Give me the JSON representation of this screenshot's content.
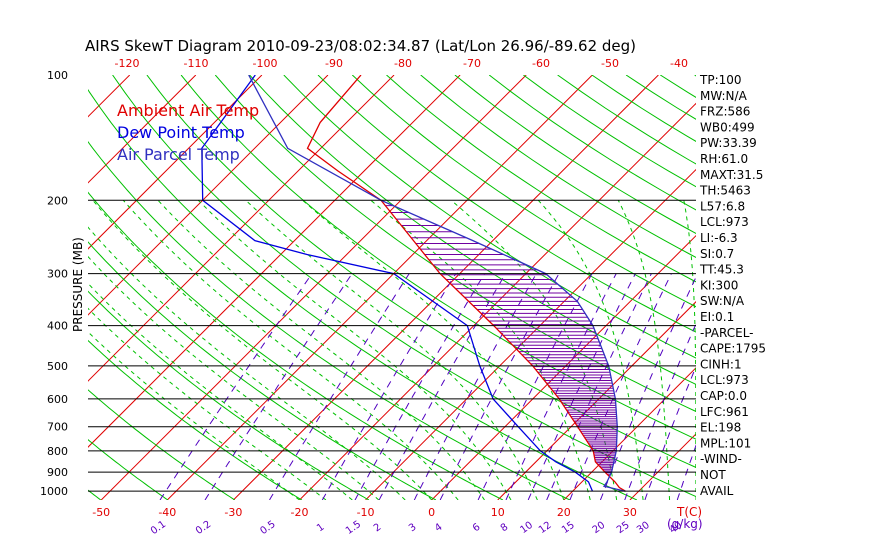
{
  "chart_data": {
    "type": "line",
    "title": "AIRS SkewT Diagram 2010-09-23/08:02:34.87 (Lat/Lon 26.96/-89.62 deg)",
    "ylabel": "PRESSURE (MB)",
    "xlabel": "T(C)",
    "mixing_ratio_label": "(g/kg)",
    "y_scale": "log",
    "ylim": [
      1050,
      100
    ],
    "xlim": [
      -52,
      40
    ],
    "pressure_ticks": [
      100,
      200,
      300,
      400,
      500,
      600,
      700,
      800,
      900,
      1000
    ],
    "bottom_temp_ticks": [
      -50,
      -40,
      -30,
      -20,
      -10,
      0,
      10,
      20,
      30
    ],
    "top_temp_ticks": [
      -120,
      -110,
      -100,
      -90,
      -80,
      -70,
      -60,
      -50,
      -40
    ],
    "mixing_ratio_ticks": [
      "0.1",
      "0.2",
      "0.5",
      "1",
      "1.5",
      "2",
      "3",
      "4",
      "6",
      "8",
      "10",
      "12",
      "15",
      "20",
      "25",
      "30",
      "40"
    ],
    "legend": [
      {
        "label": "Ambient Air Temp",
        "color": "#e00000"
      },
      {
        "label": "Dew Point Temp",
        "color": "#0000e0"
      },
      {
        "label": "Air Parcel Temp",
        "color": "#3030c0"
      }
    ],
    "series": [
      {
        "name": "Ambient Air Temp",
        "color": "#e00000",
        "points": [
          [
            1000,
            28
          ],
          [
            980,
            26.5
          ],
          [
            950,
            25
          ],
          [
            900,
            22
          ],
          [
            850,
            19
          ],
          [
            800,
            17
          ],
          [
            700,
            11
          ],
          [
            600,
            4
          ],
          [
            500,
            -5
          ],
          [
            400,
            -17
          ],
          [
            300,
            -33
          ],
          [
            250,
            -42
          ],
          [
            200,
            -53
          ],
          [
            170,
            -64
          ],
          [
            150,
            -72
          ],
          [
            130,
            -74
          ],
          [
            100,
            -75
          ]
        ]
      },
      {
        "name": "Dew Point Temp",
        "color": "#0000e0",
        "points": [
          [
            1000,
            23
          ],
          [
            950,
            21
          ],
          [
            900,
            17.5
          ],
          [
            850,
            13
          ],
          [
            800,
            9
          ],
          [
            700,
            2
          ],
          [
            600,
            -6
          ],
          [
            500,
            -13
          ],
          [
            400,
            -21
          ],
          [
            300,
            -40
          ],
          [
            270,
            -56
          ],
          [
            250,
            -66
          ],
          [
            200,
            -80
          ],
          [
            150,
            -88
          ],
          [
            100,
            -91
          ]
        ]
      },
      {
        "name": "Air Parcel Temp",
        "color": "#3030c0",
        "points": [
          [
            1000,
            28
          ],
          [
            973,
            24
          ],
          [
            950,
            23.8
          ],
          [
            900,
            23
          ],
          [
            850,
            21.8
          ],
          [
            800,
            20.5
          ],
          [
            700,
            17
          ],
          [
            600,
            12.5
          ],
          [
            500,
            6.5
          ],
          [
            400,
            -2
          ],
          [
            350,
            -8
          ],
          [
            300,
            -17
          ],
          [
            250,
            -33
          ],
          [
            200,
            -53
          ],
          [
            150,
            -75
          ],
          [
            100,
            -92
          ]
        ]
      }
    ]
  },
  "indices": [
    "TP:100",
    "MW:N/A",
    "FRZ:586",
    "WB0:499",
    "PW:33.39",
    "RH:61.0",
    "MAXT:31.5",
    "TH:5463",
    "L57:6.8",
    "LCL:973",
    "LI:-6.3",
    "SI:0.7",
    "TT:45.3",
    "KI:300",
    "SW:N/A",
    "EI:0.1",
    "-PARCEL-",
    "CAPE:1795",
    "CINH:1",
    "LCL:973",
    "CAP:0.0",
    "LFC:961",
    "EL:198",
    "MPL:101",
    "-WIND-",
    "NOT",
    "AVAIL"
  ],
  "colors": {
    "isotherm": "#e00000",
    "dry_adiabat": "#00c000",
    "moist_adiabat": "#00c000",
    "mixing_ratio": "#5000c0",
    "cape_hatch": "#7000a0",
    "axis_text": "#e00000",
    "mixing_text": "#6000c0"
  }
}
